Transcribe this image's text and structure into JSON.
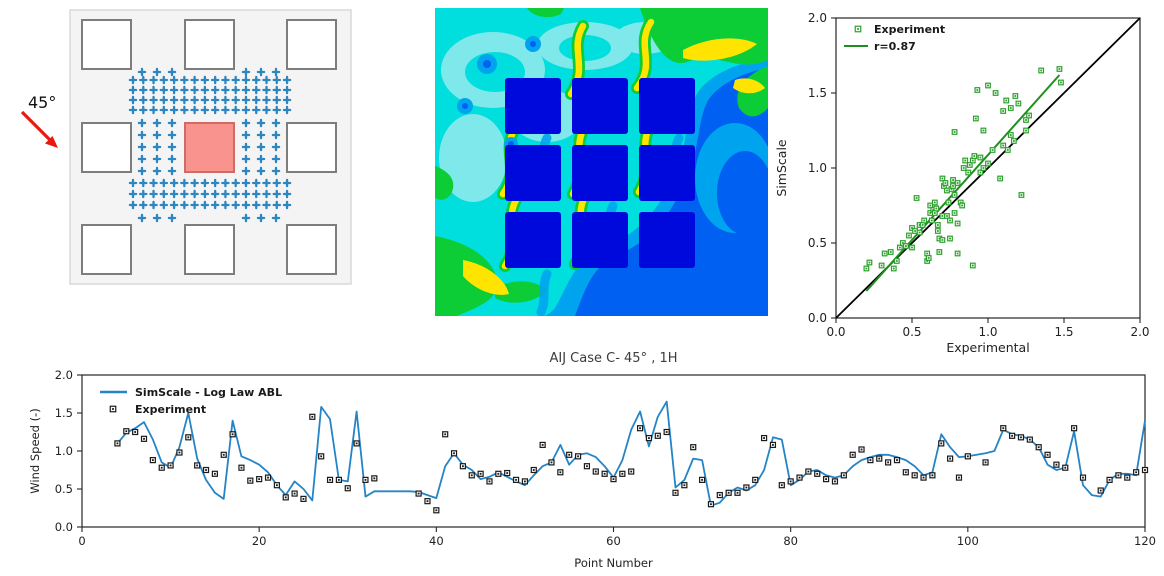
{
  "diagram": {
    "angle_label": "45°",
    "marker_symbol": "+",
    "grid": {
      "rows": 3,
      "cols": 3,
      "highlighted_cell": "center"
    },
    "colors": {
      "panel_bg": "#f4f4f4",
      "panel_border": "#d9d9d9",
      "building_fill": "#ffffff",
      "building_border": "#7d7d7d",
      "target_fill": "#f9938d",
      "target_border": "#d06a65",
      "marker": "#2e86c1",
      "arrow": "#e8190e"
    }
  },
  "cfd": {
    "type": "contour",
    "palette": {
      "building": "#0009dc",
      "royal": "#0060f2",
      "azure": "#00a4ee",
      "cyan": "#00dede",
      "pale": "#7fe8ea",
      "green": "#0ccd35",
      "yellow": "#ffe400"
    }
  },
  "chart_data": [
    {
      "id": "correlation-scatter",
      "type": "scatter",
      "xlabel": "Experimental",
      "ylabel": "SimScale",
      "xlim": [
        0.0,
        2.0
      ],
      "ylim": [
        0.0,
        2.0
      ],
      "xticks": [
        "0.0",
        "0.5",
        "1.0",
        "1.5",
        "2.0"
      ],
      "yticks": [
        "0.0",
        "0.5",
        "1.0",
        "1.5",
        "2.0"
      ],
      "legend": [
        {
          "label": "Experiment",
          "type": "marker"
        },
        {
          "label": "r=0.87",
          "type": "line"
        }
      ],
      "marker_color": "#2ca02c",
      "fit_line": {
        "color": "#1e8f1e",
        "x": [
          0.2,
          1.47
        ],
        "y": [
          0.18,
          1.62
        ],
        "label": "r=0.87"
      },
      "identity_line": {
        "color": "#000000",
        "x": [
          0,
          2
        ],
        "y": [
          0,
          2
        ]
      },
      "points": [
        [
          0.2,
          0.33
        ],
        [
          0.22,
          0.37
        ],
        [
          0.3,
          0.35
        ],
        [
          0.32,
          0.43
        ],
        [
          0.36,
          0.44
        ],
        [
          0.38,
          0.33
        ],
        [
          0.4,
          0.38
        ],
        [
          0.42,
          0.47
        ],
        [
          0.44,
          0.5
        ],
        [
          0.46,
          0.48
        ],
        [
          0.48,
          0.55
        ],
        [
          0.5,
          0.47
        ],
        [
          0.5,
          0.6
        ],
        [
          0.52,
          0.58
        ],
        [
          0.53,
          0.8
        ],
        [
          0.55,
          0.62
        ],
        [
          0.55,
          0.57
        ],
        [
          0.57,
          0.62
        ],
        [
          0.58,
          0.65
        ],
        [
          0.6,
          0.38
        ],
        [
          0.6,
          0.43
        ],
        [
          0.61,
          0.4
        ],
        [
          0.62,
          0.75
        ],
        [
          0.62,
          0.7
        ],
        [
          0.63,
          0.65
        ],
        [
          0.64,
          0.72
        ],
        [
          0.65,
          0.77
        ],
        [
          0.65,
          0.7
        ],
        [
          0.66,
          0.73
        ],
        [
          0.67,
          0.62
        ],
        [
          0.67,
          0.58
        ],
        [
          0.68,
          0.44
        ],
        [
          0.68,
          0.53
        ],
        [
          0.7,
          0.52
        ],
        [
          0.7,
          0.68
        ],
        [
          0.7,
          0.93
        ],
        [
          0.71,
          0.88
        ],
        [
          0.72,
          0.9
        ],
        [
          0.73,
          0.85
        ],
        [
          0.73,
          0.68
        ],
        [
          0.74,
          0.77
        ],
        [
          0.75,
          0.53
        ],
        [
          0.75,
          0.65
        ],
        [
          0.76,
          0.86
        ],
        [
          0.77,
          0.88
        ],
        [
          0.77,
          0.92
        ],
        [
          0.78,
          0.7
        ],
        [
          0.78,
          0.82
        ],
        [
          0.78,
          1.24
        ],
        [
          0.8,
          0.43
        ],
        [
          0.8,
          0.63
        ],
        [
          0.8,
          0.9
        ],
        [
          0.82,
          0.77
        ],
        [
          0.83,
          0.75
        ],
        [
          0.84,
          1.0
        ],
        [
          0.85,
          1.05
        ],
        [
          0.87,
          0.97
        ],
        [
          0.88,
          1.02
        ],
        [
          0.9,
          0.35
        ],
        [
          0.9,
          1.05
        ],
        [
          0.91,
          1.08
        ],
        [
          0.92,
          1.33
        ],
        [
          0.93,
          1.52
        ],
        [
          0.95,
          0.97
        ],
        [
          0.95,
          1.07
        ],
        [
          0.97,
          1.0
        ],
        [
          0.97,
          1.25
        ],
        [
          1.0,
          1.03
        ],
        [
          1.0,
          1.55
        ],
        [
          1.03,
          1.12
        ],
        [
          1.05,
          1.5
        ],
        [
          1.08,
          0.93
        ],
        [
          1.1,
          1.15
        ],
        [
          1.1,
          1.38
        ],
        [
          1.12,
          1.45
        ],
        [
          1.13,
          1.12
        ],
        [
          1.15,
          1.4
        ],
        [
          1.15,
          1.22
        ],
        [
          1.17,
          1.18
        ],
        [
          1.18,
          1.48
        ],
        [
          1.2,
          1.43
        ],
        [
          1.22,
          0.82
        ],
        [
          1.25,
          1.25
        ],
        [
          1.25,
          1.32
        ],
        [
          1.27,
          1.35
        ],
        [
          1.35,
          1.65
        ],
        [
          1.47,
          1.66
        ],
        [
          1.48,
          1.57
        ]
      ]
    },
    {
      "id": "wind-speed-profile",
      "type": "line",
      "title": "AIJ Case C- 45° , 1H",
      "xlabel": "Point Number",
      "ylabel": "Wind Speed (-)",
      "xlim": [
        0,
        120
      ],
      "ylim": [
        0.0,
        2.0
      ],
      "xticks": [
        0,
        20,
        40,
        60,
        80,
        100,
        120
      ],
      "yticks": [
        "0.0",
        "0.5",
        "1.0",
        "1.5",
        "2.0"
      ],
      "series": [
        {
          "name": "SimScale - Log Law ABL",
          "type": "line",
          "color": "#2484c6",
          "x_start": 4,
          "x_step": 1,
          "y": [
            1.1,
            1.24,
            1.3,
            1.38,
            1.15,
            0.85,
            0.78,
            1.05,
            1.5,
            0.9,
            0.62,
            0.45,
            0.37,
            1.4,
            0.93,
            0.88,
            0.82,
            0.72,
            0.55,
            0.42,
            0.6,
            0.5,
            0.35,
            1.58,
            1.42,
            0.62,
            0.6,
            1.52,
            0.4,
            0.47,
            0.47,
            0.47,
            0.47,
            0.47,
            0.46,
            0.42,
            0.38,
            0.8,
            0.97,
            0.82,
            0.75,
            0.63,
            0.66,
            0.72,
            0.66,
            0.6,
            0.55,
            0.68,
            0.8,
            0.85,
            1.08,
            0.82,
            0.95,
            0.97,
            0.92,
            0.8,
            0.65,
            0.88,
            1.28,
            1.52,
            1.06,
            1.45,
            1.65,
            0.52,
            0.62,
            0.9,
            0.88,
            0.28,
            0.32,
            0.45,
            0.52,
            0.48,
            0.55,
            0.75,
            1.18,
            1.15,
            0.55,
            0.62,
            0.73,
            0.75,
            0.68,
            0.65,
            0.68,
            0.8,
            0.88,
            0.92,
            0.95,
            0.95,
            0.92,
            0.88,
            0.8,
            0.68,
            0.72,
            1.22,
            1.05,
            0.92,
            0.93,
            0.95,
            0.97,
            1.0,
            1.28,
            1.22,
            1.2,
            1.15,
            1.05,
            0.82,
            0.75,
            0.78,
            1.26,
            0.55,
            0.42,
            0.4,
            0.62,
            0.7,
            0.7,
            0.68,
            1.4
          ]
        },
        {
          "name": "Experiment",
          "type": "scatter",
          "color": "#1a1a1a",
          "points": [
            [
              4,
              1.1
            ],
            [
              5,
              1.26
            ],
            [
              6,
              1.25
            ],
            [
              7,
              1.16
            ],
            [
              8,
              0.88
            ],
            [
              9,
              0.78
            ],
            [
              10,
              0.81
            ],
            [
              11,
              0.98
            ],
            [
              12,
              1.18
            ],
            [
              13,
              0.81
            ],
            [
              14,
              0.75
            ],
            [
              15,
              0.7
            ],
            [
              16,
              0.95
            ],
            [
              17,
              1.22
            ],
            [
              18,
              0.78
            ],
            [
              19,
              0.61
            ],
            [
              20,
              0.63
            ],
            [
              21,
              0.65
            ],
            [
              22,
              0.55
            ],
            [
              23,
              0.39
            ],
            [
              24,
              0.44
            ],
            [
              25,
              0.37
            ],
            [
              26,
              1.45
            ],
            [
              27,
              0.93
            ],
            [
              28,
              0.62
            ],
            [
              29,
              0.62
            ],
            [
              30,
              0.51
            ],
            [
              31,
              1.1
            ],
            [
              32,
              0.62
            ],
            [
              33,
              0.64
            ],
            [
              38,
              0.44
            ],
            [
              39,
              0.34
            ],
            [
              40,
              0.22
            ],
            [
              41,
              1.22
            ],
            [
              42,
              0.97
            ],
            [
              43,
              0.8
            ],
            [
              44,
              0.68
            ],
            [
              45,
              0.7
            ],
            [
              46,
              0.6
            ],
            [
              47,
              0.7
            ],
            [
              48,
              0.71
            ],
            [
              49,
              0.62
            ],
            [
              50,
              0.6
            ],
            [
              51,
              0.75
            ],
            [
              52,
              1.08
            ],
            [
              53,
              0.85
            ],
            [
              54,
              0.72
            ],
            [
              55,
              0.95
            ],
            [
              56,
              0.93
            ],
            [
              57,
              0.8
            ],
            [
              58,
              0.73
            ],
            [
              59,
              0.7
            ],
            [
              60,
              0.63
            ],
            [
              61,
              0.7
            ],
            [
              62,
              0.73
            ],
            [
              63,
              1.3
            ],
            [
              64,
              1.17
            ],
            [
              65,
              1.2
            ],
            [
              66,
              1.25
            ],
            [
              67,
              0.45
            ],
            [
              68,
              0.55
            ],
            [
              69,
              1.05
            ],
            [
              70,
              0.62
            ],
            [
              71,
              0.3
            ],
            [
              72,
              0.42
            ],
            [
              73,
              0.45
            ],
            [
              74,
              0.45
            ],
            [
              75,
              0.52
            ],
            [
              76,
              0.62
            ],
            [
              77,
              1.17
            ],
            [
              78,
              1.08
            ],
            [
              79,
              0.55
            ],
            [
              80,
              0.6
            ],
            [
              81,
              0.65
            ],
            [
              82,
              0.73
            ],
            [
              83,
              0.7
            ],
            [
              84,
              0.63
            ],
            [
              85,
              0.6
            ],
            [
              86,
              0.68
            ],
            [
              87,
              0.95
            ],
            [
              88,
              1.02
            ],
            [
              89,
              0.88
            ],
            [
              90,
              0.9
            ],
            [
              91,
              0.85
            ],
            [
              92,
              0.88
            ],
            [
              93,
              0.72
            ],
            [
              94,
              0.68
            ],
            [
              95,
              0.65
            ],
            [
              96,
              0.68
            ],
            [
              97,
              1.1
            ],
            [
              98,
              0.9
            ],
            [
              99,
              0.65
            ],
            [
              100,
              0.93
            ],
            [
              102,
              0.85
            ],
            [
              104,
              1.3
            ],
            [
              105,
              1.2
            ],
            [
              106,
              1.18
            ],
            [
              107,
              1.15
            ],
            [
              108,
              1.05
            ],
            [
              109,
              0.95
            ],
            [
              110,
              0.82
            ],
            [
              111,
              0.78
            ],
            [
              112,
              1.3
            ],
            [
              113,
              0.65
            ],
            [
              115,
              0.48
            ],
            [
              116,
              0.62
            ],
            [
              117,
              0.68
            ],
            [
              118,
              0.65
            ],
            [
              119,
              0.72
            ],
            [
              120,
              0.75
            ]
          ]
        }
      ]
    }
  ]
}
